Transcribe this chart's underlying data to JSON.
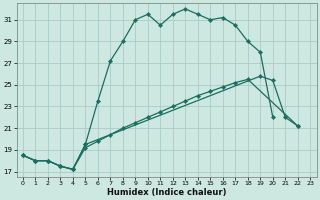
{
  "xlabel": "Humidex (Indice chaleur)",
  "ylabel": "",
  "bg_color": "#cde8e0",
  "grid_color": "#a8ccC4",
  "line_color": "#1a6e60",
  "xlim": [
    -0.5,
    23.5
  ],
  "ylim": [
    16.5,
    32.5
  ],
  "yticks": [
    17,
    19,
    21,
    23,
    25,
    27,
    29,
    31
  ],
  "xticks": [
    0,
    1,
    2,
    3,
    4,
    5,
    6,
    7,
    8,
    9,
    10,
    11,
    12,
    13,
    14,
    15,
    16,
    17,
    18,
    19,
    20,
    21,
    22,
    23
  ],
  "series": [
    {
      "x": [
        0,
        1,
        2,
        3,
        4,
        5,
        6,
        7,
        8,
        9,
        10,
        11,
        12,
        13,
        14,
        15,
        16,
        17,
        18,
        19,
        20
      ],
      "y": [
        18.5,
        18.0,
        18.0,
        17.5,
        17.2,
        19.5,
        23.5,
        27.2,
        29.0,
        31.0,
        31.5,
        30.5,
        31.5,
        32.0,
        31.5,
        31.0,
        31.2,
        30.5,
        29.0,
        28.0,
        22.0
      ]
    },
    {
      "x": [
        0,
        1,
        2,
        3,
        4,
        5,
        19,
        20,
        21,
        22
      ],
      "y": [
        18.5,
        18.0,
        18.0,
        17.5,
        17.2,
        19.5,
        25.8,
        25.4,
        22.0,
        21.2
      ]
    },
    {
      "x": [
        0,
        1,
        2,
        3,
        4,
        5,
        6,
        7,
        8,
        9,
        10,
        11,
        12,
        13,
        14,
        15,
        16,
        17,
        18,
        22
      ],
      "y": [
        18.5,
        18.0,
        18.0,
        17.5,
        17.2,
        19.2,
        19.8,
        20.4,
        21.0,
        21.5,
        22.0,
        22.5,
        23.0,
        23.5,
        24.0,
        24.4,
        24.8,
        25.2,
        25.5,
        21.2
      ]
    }
  ]
}
